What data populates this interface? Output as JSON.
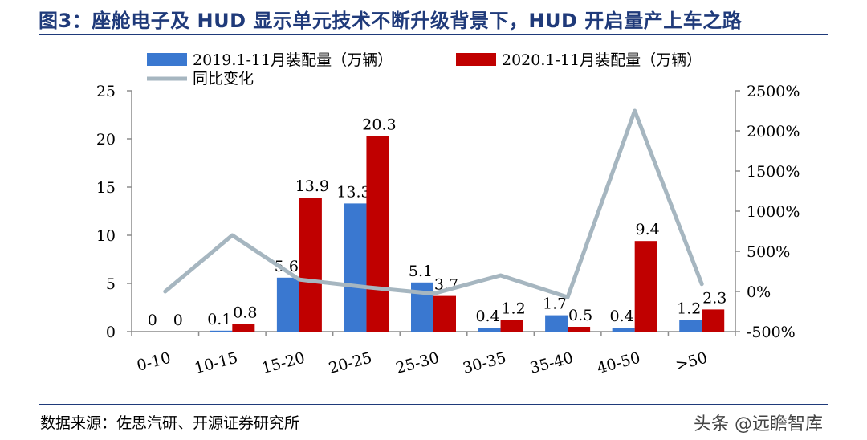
{
  "figure": {
    "title": "图3：座舱电子及 HUD 显示单元技术不断升级背景下，HUD 开启量产上车之路",
    "source": "数据来源：佐思汽研、开源证券研究所",
    "watermark": "头条 @远瞻智库"
  },
  "chart_data": {
    "type": "bar",
    "categories": [
      "0-10",
      "10-15",
      "15-20",
      "20-25",
      "25-30",
      "30-35",
      "35-40",
      "40-50",
      ">50"
    ],
    "series": [
      {
        "name": "2019.1-11月装配量（万辆）",
        "kind": "bar",
        "axis": "left",
        "color": "#3a78d0",
        "values": [
          0,
          0.1,
          5.6,
          13.3,
          5.1,
          0.4,
          1.7,
          0.4,
          1.2
        ]
      },
      {
        "name": "2020.1-11月装配量（万辆）",
        "kind": "bar",
        "axis": "left",
        "color": "#c00000",
        "values": [
          0,
          0.8,
          13.9,
          20.3,
          3.7,
          1.2,
          0.5,
          9.4,
          2.3
        ]
      },
      {
        "name": "同比变化",
        "kind": "line",
        "axis": "right",
        "color": "#a6b6c0",
        "values": [
          0,
          700,
          148,
          53,
          -27,
          200,
          -71,
          2250,
          92
        ]
      }
    ],
    "data_labels": {
      "s2019": [
        "0",
        "0.1",
        "5.6",
        "13.3",
        "5.1",
        "0.4",
        "1.7",
        "0.4",
        "1.2"
      ],
      "s2020": [
        "0",
        "0.8",
        "13.9",
        "20.3",
        "3.7",
        "1.2",
        "0.5",
        "9.4",
        "2.3"
      ]
    },
    "y_left": {
      "min": 0,
      "max": 25,
      "ticks": [
        0,
        5,
        10,
        15,
        20,
        25
      ],
      "tick_labels": [
        "0",
        "5",
        "10",
        "15",
        "20",
        "25"
      ]
    },
    "y_right": {
      "min": -500,
      "max": 2500,
      "ticks": [
        -500,
        0,
        500,
        1000,
        1500,
        2000,
        2500
      ],
      "tick_labels": [
        "-500%",
        "0%",
        "500%",
        "1000%",
        "1500%",
        "2000%",
        "2500%"
      ]
    },
    "legend_position": "top",
    "grid": false
  }
}
